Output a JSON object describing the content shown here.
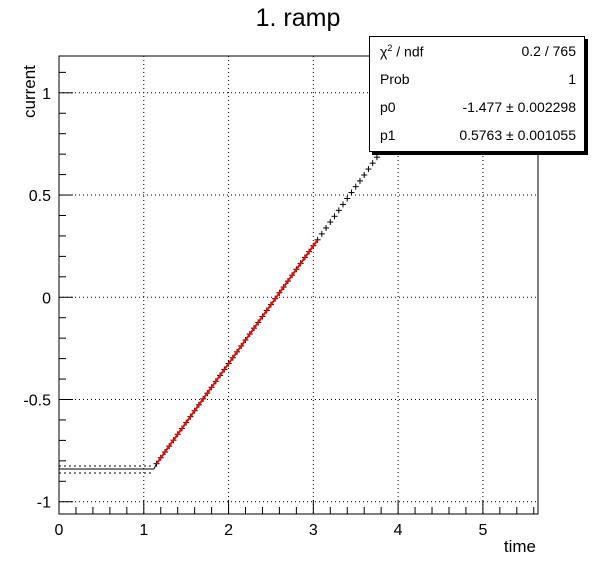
{
  "chart_data": {
    "type": "scatter",
    "title": "1. ramp",
    "xlabel": "time",
    "ylabel": "current",
    "xlim": [
      0,
      5.65
    ],
    "ylim": [
      -1.06,
      1.18
    ],
    "x_ticks": [
      0,
      1,
      2,
      3,
      4,
      5
    ],
    "x_tick_labels": [
      "0",
      "1",
      "2",
      "3",
      "4",
      "5"
    ],
    "y_ticks": [
      -1,
      -0.5,
      0,
      0.5,
      1
    ],
    "y_tick_labels": [
      "-1",
      "-0.5",
      "0",
      "0.5",
      "1"
    ],
    "grid": true,
    "flat_segment": {
      "x_start": 0.0,
      "x_end": 1.12,
      "y": -0.84
    },
    "data_points": {
      "x": [
        1.15,
        1.2,
        1.25,
        1.3,
        1.35,
        1.4,
        1.45,
        1.5,
        1.55,
        1.6,
        1.65,
        1.7,
        1.75,
        1.8,
        1.85,
        1.9,
        1.95,
        2.0,
        2.05,
        2.1,
        2.15,
        2.2,
        2.25,
        2.3,
        2.35,
        2.4,
        2.45,
        2.5,
        2.55,
        2.6,
        2.65,
        2.7,
        2.75,
        2.8,
        2.85,
        2.9,
        2.95,
        3.0,
        3.05,
        3.1,
        3.15,
        3.2,
        3.25,
        3.3,
        3.35,
        3.4,
        3.45,
        3.5,
        3.55,
        3.6,
        3.65,
        3.7,
        3.75,
        3.8,
        3.85,
        3.9,
        3.95,
        4.0
      ],
      "y": [
        -0.814,
        -0.785,
        -0.757,
        -0.728,
        -0.699,
        -0.67,
        -0.642,
        -0.613,
        -0.584,
        -0.555,
        -0.526,
        -0.497,
        -0.469,
        -0.44,
        -0.411,
        -0.382,
        -0.353,
        -0.324,
        -0.296,
        -0.267,
        -0.238,
        -0.209,
        -0.18,
        -0.151,
        -0.123,
        -0.094,
        -0.065,
        -0.036,
        -0.007,
        0.022,
        0.05,
        0.079,
        0.108,
        0.137,
        0.166,
        0.195,
        0.223,
        0.252,
        0.281,
        0.31,
        0.339,
        0.368,
        0.396,
        0.425,
        0.454,
        0.483,
        0.512,
        0.541,
        0.569,
        0.598,
        0.627,
        0.656,
        0.685,
        0.714,
        0.742,
        0.771,
        0.8,
        0.829
      ]
    },
    "fit": {
      "name": "p0 + p1*x",
      "color": "#ff0000",
      "x_range": [
        1.15,
        3.05
      ],
      "p0": -1.477,
      "p1": 0.5763
    }
  },
  "stats_box": {
    "rows": [
      {
        "key_html": "&#967;<sup>2</sup> / ndf",
        "value": "0.2 / 765"
      },
      {
        "key": "Prob",
        "value": "1"
      },
      {
        "key": "p0",
        "value": "-1.477 ± 0.002298"
      },
      {
        "key": "p1",
        "value": "0.5763 ± 0.001055"
      }
    ]
  }
}
